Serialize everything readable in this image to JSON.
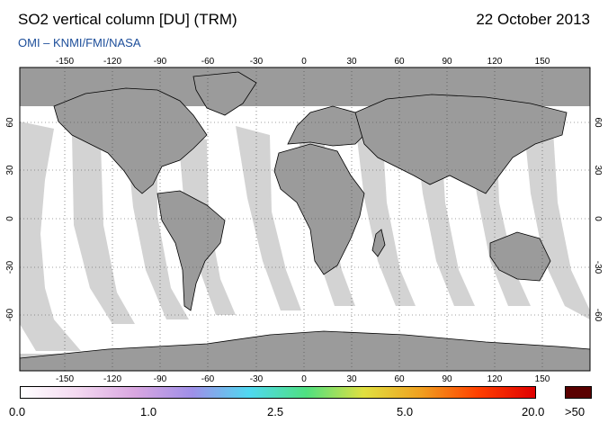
{
  "header": {
    "title": "SO2 vertical column [DU] (TRM)",
    "date": "22 October 2013",
    "credit": "OMI  –  KNMI/FMI/NASA"
  },
  "map": {
    "lon_ticks": [
      "-150",
      "-120",
      "-90",
      "-60",
      "-30",
      "0",
      "30",
      "60",
      "90",
      "120",
      "150"
    ],
    "lat_ticks": [
      "60",
      "30",
      "0",
      "-30",
      "-60"
    ],
    "colors": {
      "land": "#9b9b9b",
      "ocean": "#ffffff",
      "swath_gap": "#d4d4d4",
      "polar_no_data": "#9b9b9b"
    }
  },
  "colorbar": {
    "labels": [
      "0.0",
      "1.0",
      "2.5",
      "5.0",
      "20.0",
      ">50"
    ],
    "gradient": [
      "#ffffff",
      "#f3d8f0",
      "#d9a6e0",
      "#9f8fe8",
      "#4fd8f0",
      "#4fe080",
      "#e0e040",
      "#f0a020",
      "#ff4000",
      "#e00000"
    ],
    "overflow_color": "#5a0000"
  }
}
